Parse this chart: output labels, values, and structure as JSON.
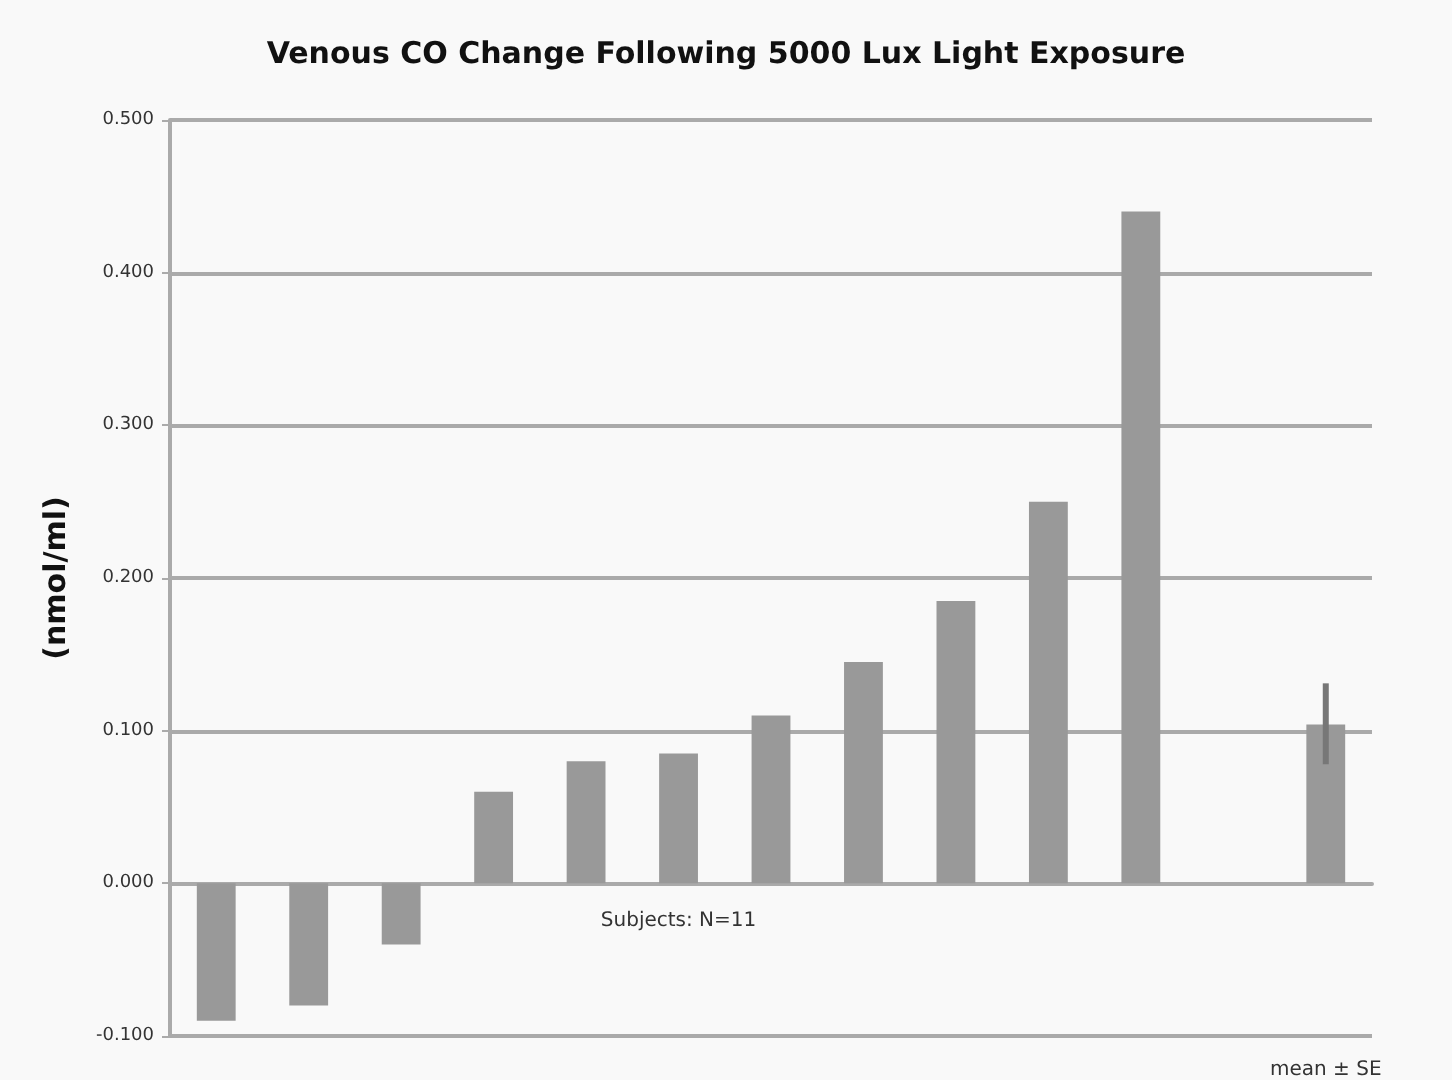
{
  "chart_data": {
    "type": "bar",
    "title": "Venous CO Change Following 5000 Lux Light Exposure",
    "ylabel": "(nmol/ml)",
    "categories": [
      null,
      null,
      null,
      null,
      null,
      null,
      null,
      null,
      null,
      null,
      null,
      null,
      "mean ± SE"
    ],
    "values": [
      -0.09,
      -0.08,
      -0.04,
      0.06,
      0.08,
      0.085,
      0.11,
      0.145,
      0.185,
      0.25,
      0.44,
      null,
      0.104
    ],
    "errors": [
      null,
      null,
      null,
      null,
      null,
      null,
      null,
      null,
      null,
      null,
      null,
      null,
      [
        0.078,
        0.131
      ]
    ],
    "color": "#999999",
    "ylim": [
      -0.1,
      0.5
    ],
    "yticks": [
      {
        "value": -0.1,
        "label": "-0.100"
      },
      {
        "value": 0,
        "label": "0.000"
      },
      {
        "value": 0.1,
        "label": "0.100"
      },
      {
        "value": 0.2,
        "label": "0.200"
      },
      {
        "value": 0.3,
        "label": "0.300"
      },
      {
        "value": 0.4,
        "label": "0.400"
      },
      {
        "value": 0.5,
        "label": "0.500"
      }
    ],
    "grid": "y",
    "annotations": [
      "Subjects: N=11"
    ]
  }
}
